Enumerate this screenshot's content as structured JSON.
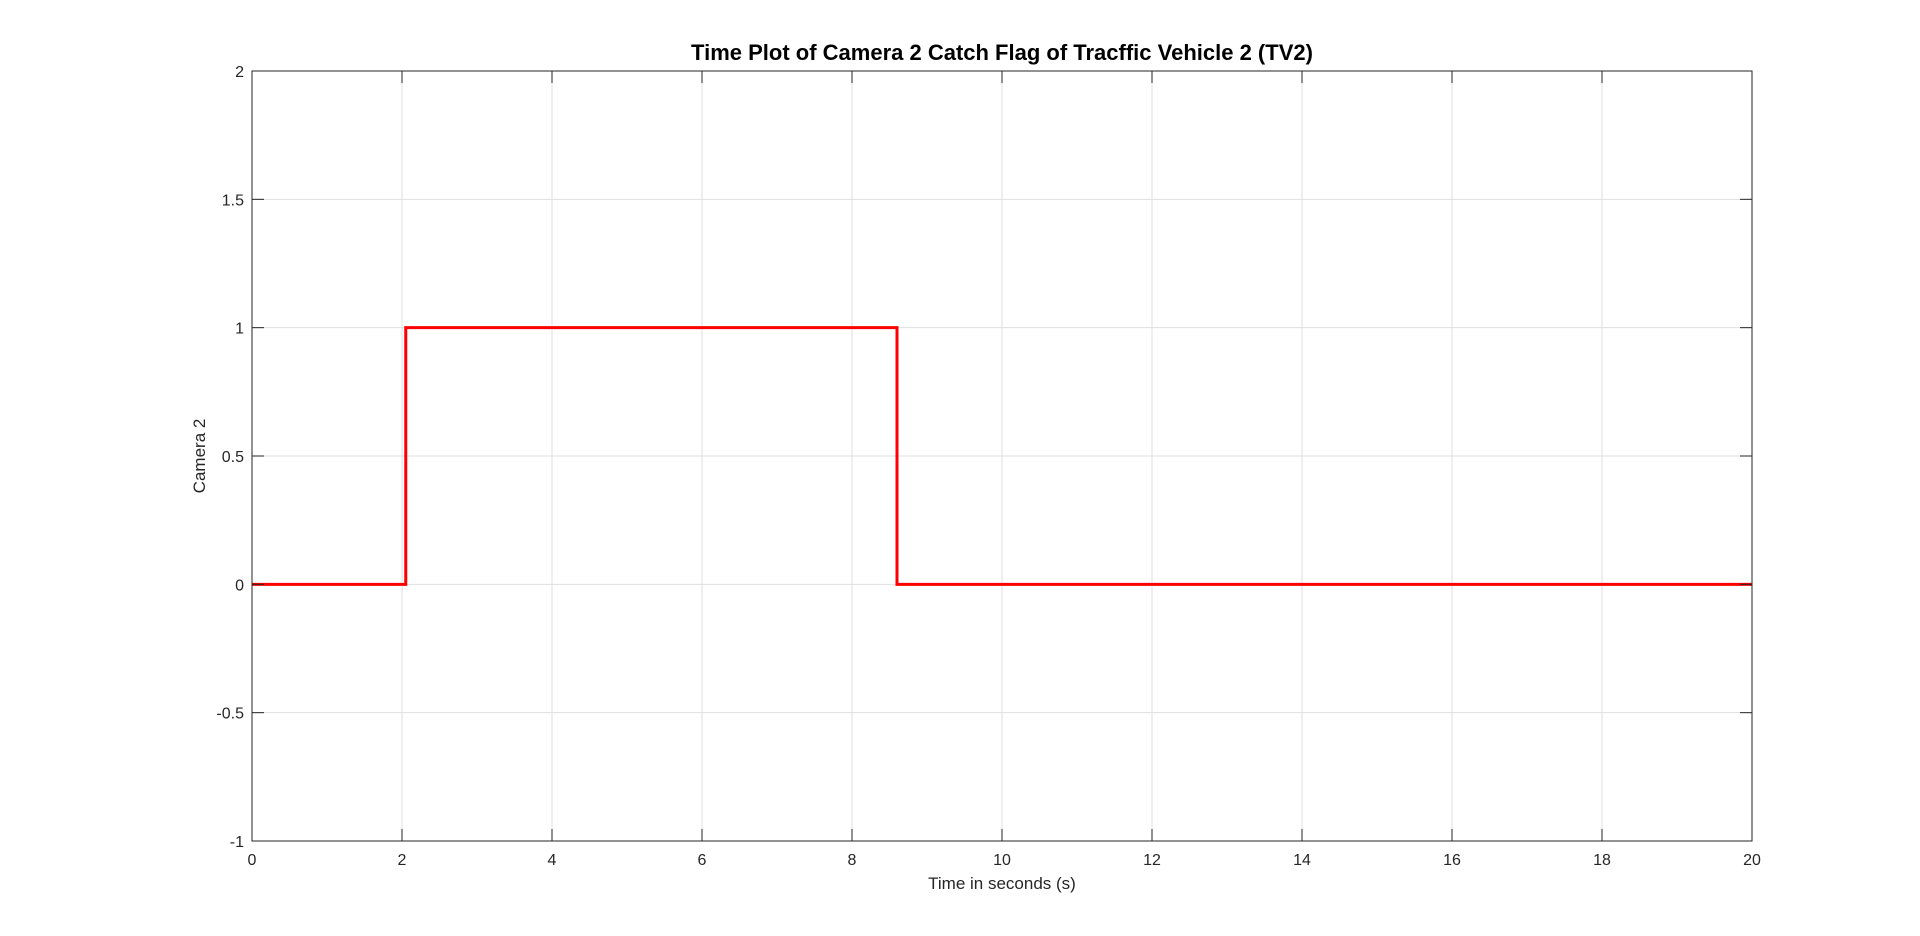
{
  "chart_data": {
    "type": "line",
    "title": "Time Plot of Camera 2 Catch Flag of Tracffic Vehicle 2 (TV2)",
    "xlabel": "Time in seconds (s)",
    "ylabel": "Camera 2",
    "xlim": [
      0,
      20
    ],
    "ylim": [
      -1,
      2
    ],
    "xticks": [
      0,
      2,
      4,
      6,
      8,
      10,
      12,
      14,
      16,
      18,
      20
    ],
    "yticks": [
      -1,
      -0.5,
      0,
      0.5,
      1,
      1.5,
      2
    ],
    "xtick_labels": [
      "0",
      "2",
      "4",
      "6",
      "8",
      "10",
      "12",
      "14",
      "16",
      "18",
      "20"
    ],
    "ytick_labels": [
      "-1",
      "-0.5",
      "0",
      "0.5",
      "1",
      "1.5",
      "2"
    ],
    "grid": true,
    "series": [
      {
        "color": "#ff0000",
        "x": [
          0,
          2.05,
          2.05,
          8.6,
          8.6,
          20
        ],
        "y": [
          0,
          0,
          1,
          1,
          0,
          0
        ]
      }
    ]
  }
}
